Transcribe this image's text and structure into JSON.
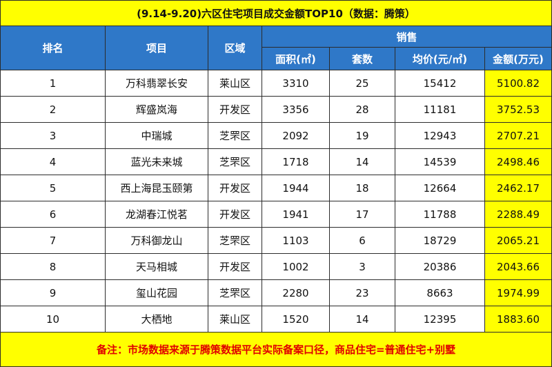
{
  "title": "(9.14-9.20)六区住宅项目成交金额TOP10（数据：腾策）",
  "headers": {
    "rank": "排名",
    "project": "项目",
    "district": "区域",
    "sales": "销售",
    "area": "面积(㎡)",
    "units": "套数",
    "avg_price": "均价(元/㎡)",
    "amount": "金额(万元)"
  },
  "rows": [
    {
      "rank": "1",
      "project": "万科翡翠长安",
      "district": "莱山区",
      "area": "3310",
      "units": "25",
      "avg_price": "15412",
      "amount": "5100.82"
    },
    {
      "rank": "2",
      "project": "辉盛岚海",
      "district": "开发区",
      "area": "3356",
      "units": "28",
      "avg_price": "11181",
      "amount": "3752.53"
    },
    {
      "rank": "3",
      "project": "中瑞城",
      "district": "芝罘区",
      "area": "2092",
      "units": "19",
      "avg_price": "12943",
      "amount": "2707.21"
    },
    {
      "rank": "4",
      "project": "蓝光未来城",
      "district": "芝罘区",
      "area": "1718",
      "units": "14",
      "avg_price": "14539",
      "amount": "2498.46"
    },
    {
      "rank": "5",
      "project": "西上海昆玉颐第",
      "district": "开发区",
      "area": "1944",
      "units": "18",
      "avg_price": "12664",
      "amount": "2462.17"
    },
    {
      "rank": "6",
      "project": "龙湖春江悦茗",
      "district": "开发区",
      "area": "1941",
      "units": "17",
      "avg_price": "11788",
      "amount": "2288.49"
    },
    {
      "rank": "7",
      "project": "万科御龙山",
      "district": "芝罘区",
      "area": "1103",
      "units": "6",
      "avg_price": "18729",
      "amount": "2065.21"
    },
    {
      "rank": "8",
      "project": "天马相城",
      "district": "开发区",
      "area": "1002",
      "units": "3",
      "avg_price": "20386",
      "amount": "2043.66"
    },
    {
      "rank": "9",
      "project": "玺山花园",
      "district": "芝罘区",
      "area": "2280",
      "units": "23",
      "avg_price": "8663",
      "amount": "1974.99"
    },
    {
      "rank": "10",
      "project": "大栖地",
      "district": "莱山区",
      "area": "1520",
      "units": "14",
      "avg_price": "12395",
      "amount": "1883.60"
    }
  ],
  "note": "备注：市场数据来源于腾策数据平台实际备案口径，商品住宅=普通住宅+别墅",
  "colors": {
    "header_blue": "#2f78c8",
    "highlight_yellow": "#ffff00",
    "note_red": "#e00000"
  }
}
